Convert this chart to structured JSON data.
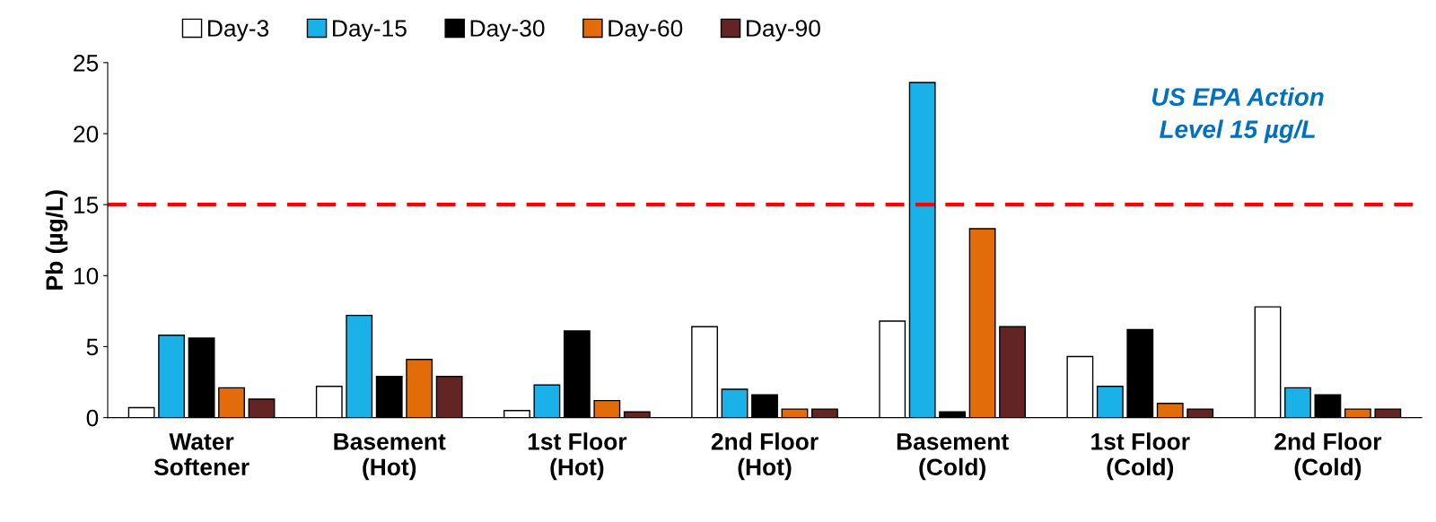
{
  "chart_data": {
    "type": "bar",
    "ylabel": "Pb (µg/L)",
    "categories": [
      "Water\nSoftener",
      "Basement\n(Hot)",
      "1st Floor\n(Hot)",
      "2nd Floor\n(Hot)",
      "Basement\n(Cold)",
      "1st Floor\n(Cold)",
      "2nd Floor\n(Cold)"
    ],
    "series": [
      {
        "name": "Day-3",
        "color": "#ffffff",
        "values": [
          0.7,
          2.2,
          0.5,
          6.4,
          6.8,
          4.3,
          7.8
        ]
      },
      {
        "name": "Day-15",
        "color": "#1ab0e8",
        "values": [
          5.8,
          7.2,
          2.3,
          2.0,
          23.6,
          2.2,
          2.1
        ]
      },
      {
        "name": "Day-30",
        "color": "#000000",
        "values": [
          5.6,
          2.9,
          6.1,
          1.6,
          0.4,
          6.2,
          1.6
        ]
      },
      {
        "name": "Day-60",
        "color": "#e36c0a",
        "values": [
          2.1,
          4.1,
          1.2,
          0.6,
          13.3,
          1.0,
          0.6
        ]
      },
      {
        "name": "Day-90",
        "color": "#632523",
        "values": [
          1.3,
          2.9,
          0.4,
          0.6,
          6.4,
          0.6,
          0.6
        ]
      }
    ],
    "ylim": [
      0,
      25
    ],
    "yticks": [
      0,
      5,
      10,
      15,
      20,
      25
    ],
    "ref_lines": [
      {
        "axis": "y",
        "value": 15,
        "color": "#ff0000",
        "line_style": "dashed"
      }
    ],
    "annotations": [
      "US EPA Action\nLevel 15 µg/L"
    ],
    "grid": false,
    "legend": "top"
  }
}
